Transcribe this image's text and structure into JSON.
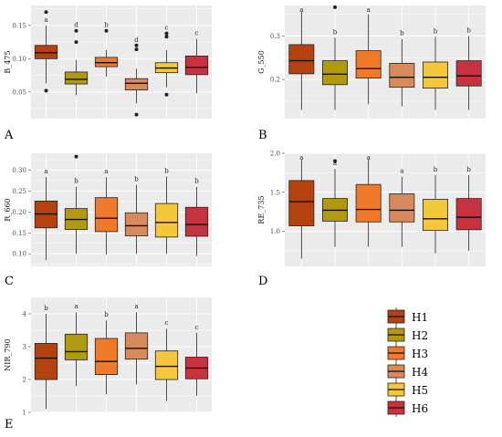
{
  "colors": {
    "H1": "#b5410f",
    "H2": "#b29a10",
    "H3": "#f07a2a",
    "H4": "#d88a5c",
    "H5": "#f5c73a",
    "H6": "#c8323f"
  },
  "legend": {
    "entries": [
      "H1",
      "H2",
      "H3",
      "H4",
      "H5",
      "H6"
    ]
  },
  "chart_data": [
    {
      "type": "box",
      "panel": "A",
      "ylabel": "B_475",
      "ylim": [
        0.01,
        0.18
      ],
      "yticks": [
        0.05,
        0.1,
        0.15
      ],
      "ytick_labels": [
        "0.05",
        "0.10",
        "0.15"
      ],
      "categories": [
        "H1",
        "H2",
        "H3",
        "H4",
        "H5",
        "H6"
      ],
      "boxes": [
        {
          "group": "H1",
          "min": 0.063,
          "q1": 0.1,
          "median": 0.109,
          "q3": 0.12,
          "max": 0.15,
          "outliers": [
            0.17,
            0.052
          ],
          "sig": "a"
        },
        {
          "group": "H2",
          "min": 0.045,
          "q1": 0.062,
          "median": 0.069,
          "q3": 0.08,
          "max": 0.098,
          "outliers": [
            0.142,
            0.125
          ],
          "sig": "d"
        },
        {
          "group": "H3",
          "min": 0.073,
          "q1": 0.088,
          "median": 0.094,
          "q3": 0.102,
          "max": 0.113,
          "outliers": [
            0.142
          ],
          "sig": "b"
        },
        {
          "group": "H4",
          "min": 0.033,
          "q1": 0.053,
          "median": 0.063,
          "q3": 0.07,
          "max": 0.085,
          "outliers": [
            0.12,
            0.114,
            0.016
          ],
          "sig": "d"
        },
        {
          "group": "H5",
          "min": 0.057,
          "q1": 0.079,
          "median": 0.086,
          "q3": 0.094,
          "max": 0.113,
          "outliers": [
            0.138,
            0.133,
            0.046
          ],
          "sig": "c"
        },
        {
          "group": "H6",
          "min": 0.048,
          "q1": 0.076,
          "median": 0.087,
          "q3": 0.104,
          "max": 0.13,
          "outliers": [],
          "sig": "c"
        }
      ]
    },
    {
      "type": "box",
      "panel": "B",
      "ylabel": "G_550",
      "ylim": [
        0.11,
        0.37
      ],
      "yticks": [
        0.2,
        0.3
      ],
      "ytick_labels": [
        "0.2",
        "0.3"
      ],
      "categories": [
        "H1",
        "H2",
        "H3",
        "H4",
        "H5",
        "H6"
      ],
      "boxes": [
        {
          "group": "H1",
          "min": 0.13,
          "q1": 0.213,
          "median": 0.243,
          "q3": 0.28,
          "max": 0.356,
          "outliers": [],
          "sig": "a"
        },
        {
          "group": "H2",
          "min": 0.13,
          "q1": 0.188,
          "median": 0.212,
          "q3": 0.243,
          "max": 0.296,
          "outliers": [
            0.366
          ],
          "sig": "b"
        },
        {
          "group": "H3",
          "min": 0.143,
          "q1": 0.203,
          "median": 0.225,
          "q3": 0.266,
          "max": 0.35,
          "outliers": [],
          "sig": "a"
        },
        {
          "group": "H4",
          "min": 0.138,
          "q1": 0.182,
          "median": 0.205,
          "q3": 0.237,
          "max": 0.293,
          "outliers": [],
          "sig": "b"
        },
        {
          "group": "H5",
          "min": 0.13,
          "q1": 0.18,
          "median": 0.205,
          "q3": 0.24,
          "max": 0.298,
          "outliers": [],
          "sig": "b"
        },
        {
          "group": "H6",
          "min": 0.13,
          "q1": 0.185,
          "median": 0.208,
          "q3": 0.243,
          "max": 0.3,
          "outliers": [],
          "sig": "b"
        }
      ]
    },
    {
      "type": "box",
      "panel": "C",
      "ylabel": "R_660",
      "ylim": [
        0.07,
        0.34
      ],
      "yticks": [
        0.1,
        0.15,
        0.2,
        0.25,
        0.3
      ],
      "ytick_labels": [
        "0.10",
        "0.15",
        "0.20",
        "0.25",
        "0.30"
      ],
      "categories": [
        "H1",
        "H2",
        "H3",
        "H4",
        "H5",
        "H6"
      ],
      "boxes": [
        {
          "group": "H1",
          "min": 0.085,
          "q1": 0.162,
          "median": 0.195,
          "q3": 0.226,
          "max": 0.283,
          "outliers": [],
          "sig": "a"
        },
        {
          "group": "H2",
          "min": 0.1,
          "q1": 0.158,
          "median": 0.182,
          "q3": 0.208,
          "max": 0.26,
          "outliers": [
            0.332
          ],
          "sig": "b"
        },
        {
          "group": "H3",
          "min": 0.098,
          "q1": 0.153,
          "median": 0.185,
          "q3": 0.234,
          "max": 0.283,
          "outliers": [],
          "sig": "a"
        },
        {
          "group": "H4",
          "min": 0.1,
          "q1": 0.143,
          "median": 0.167,
          "q3": 0.198,
          "max": 0.265,
          "outliers": [],
          "sig": "b"
        },
        {
          "group": "H5",
          "min": 0.1,
          "q1": 0.14,
          "median": 0.175,
          "q3": 0.22,
          "max": 0.285,
          "outliers": [],
          "sig": "b"
        },
        {
          "group": "H6",
          "min": 0.095,
          "q1": 0.142,
          "median": 0.17,
          "q3": 0.211,
          "max": 0.26,
          "outliers": [],
          "sig": "b"
        }
      ]
    },
    {
      "type": "box",
      "panel": "D",
      "ylabel": "RE_735",
      "ylim": [
        0.55,
        2.0
      ],
      "yticks": [
        1.0,
        1.5,
        2.0
      ],
      "ytick_labels": [
        "1.0",
        "1.5",
        "2.0"
      ],
      "categories": [
        "H1",
        "H2",
        "H3",
        "H4",
        "H5",
        "H6"
      ],
      "boxes": [
        {
          "group": "H1",
          "min": 0.65,
          "q1": 1.07,
          "median": 1.38,
          "q3": 1.65,
          "max": 1.92,
          "outliers": [],
          "sig": "a"
        },
        {
          "group": "H2",
          "min": 0.8,
          "q1": 1.13,
          "median": 1.27,
          "q3": 1.42,
          "max": 1.8,
          "outliers": [
            1.9
          ],
          "sig": "a"
        },
        {
          "group": "H3",
          "min": 0.8,
          "q1": 1.12,
          "median": 1.28,
          "q3": 1.6,
          "max": 1.92,
          "outliers": [],
          "sig": "a"
        },
        {
          "group": "H4",
          "min": 0.8,
          "q1": 1.12,
          "median": 1.27,
          "q3": 1.48,
          "max": 1.7,
          "outliers": [],
          "sig": "a"
        },
        {
          "group": "H5",
          "min": 0.72,
          "q1": 1.01,
          "median": 1.16,
          "q3": 1.41,
          "max": 1.72,
          "outliers": [],
          "sig": "b"
        },
        {
          "group": "H6",
          "min": 0.75,
          "q1": 1.02,
          "median": 1.18,
          "q3": 1.42,
          "max": 1.72,
          "outliers": [],
          "sig": "b"
        }
      ]
    },
    {
      "type": "box",
      "panel": "E",
      "ylabel": "NIR_790",
      "ylim": [
        1.0,
        4.5
      ],
      "yticks": [
        1,
        2,
        3,
        4
      ],
      "ytick_labels": [
        "1",
        "2",
        "3",
        "4"
      ],
      "categories": [
        "H1",
        "H2",
        "H3",
        "H4",
        "H5",
        "H6"
      ],
      "boxes": [
        {
          "group": "H1",
          "min": 1.1,
          "q1": 2.0,
          "median": 2.65,
          "q3": 3.1,
          "max": 4.0,
          "outliers": [],
          "sig": "b"
        },
        {
          "group": "H2",
          "min": 1.8,
          "q1": 2.6,
          "median": 2.85,
          "q3": 3.38,
          "max": 4.05,
          "outliers": [],
          "sig": "a"
        },
        {
          "group": "H3",
          "min": 1.55,
          "q1": 2.15,
          "median": 2.55,
          "q3": 3.25,
          "max": 3.8,
          "outliers": [],
          "sig": "b"
        },
        {
          "group": "H4",
          "min": 1.85,
          "q1": 2.62,
          "median": 2.95,
          "q3": 3.42,
          "max": 4.05,
          "outliers": [],
          "sig": "a"
        },
        {
          "group": "H5",
          "min": 1.35,
          "q1": 2.0,
          "median": 2.4,
          "q3": 2.87,
          "max": 3.55,
          "outliers": [],
          "sig": "c"
        },
        {
          "group": "H6",
          "min": 1.5,
          "q1": 2.02,
          "median": 2.35,
          "q3": 2.68,
          "max": 3.42,
          "outliers": [],
          "sig": "c"
        }
      ]
    }
  ]
}
